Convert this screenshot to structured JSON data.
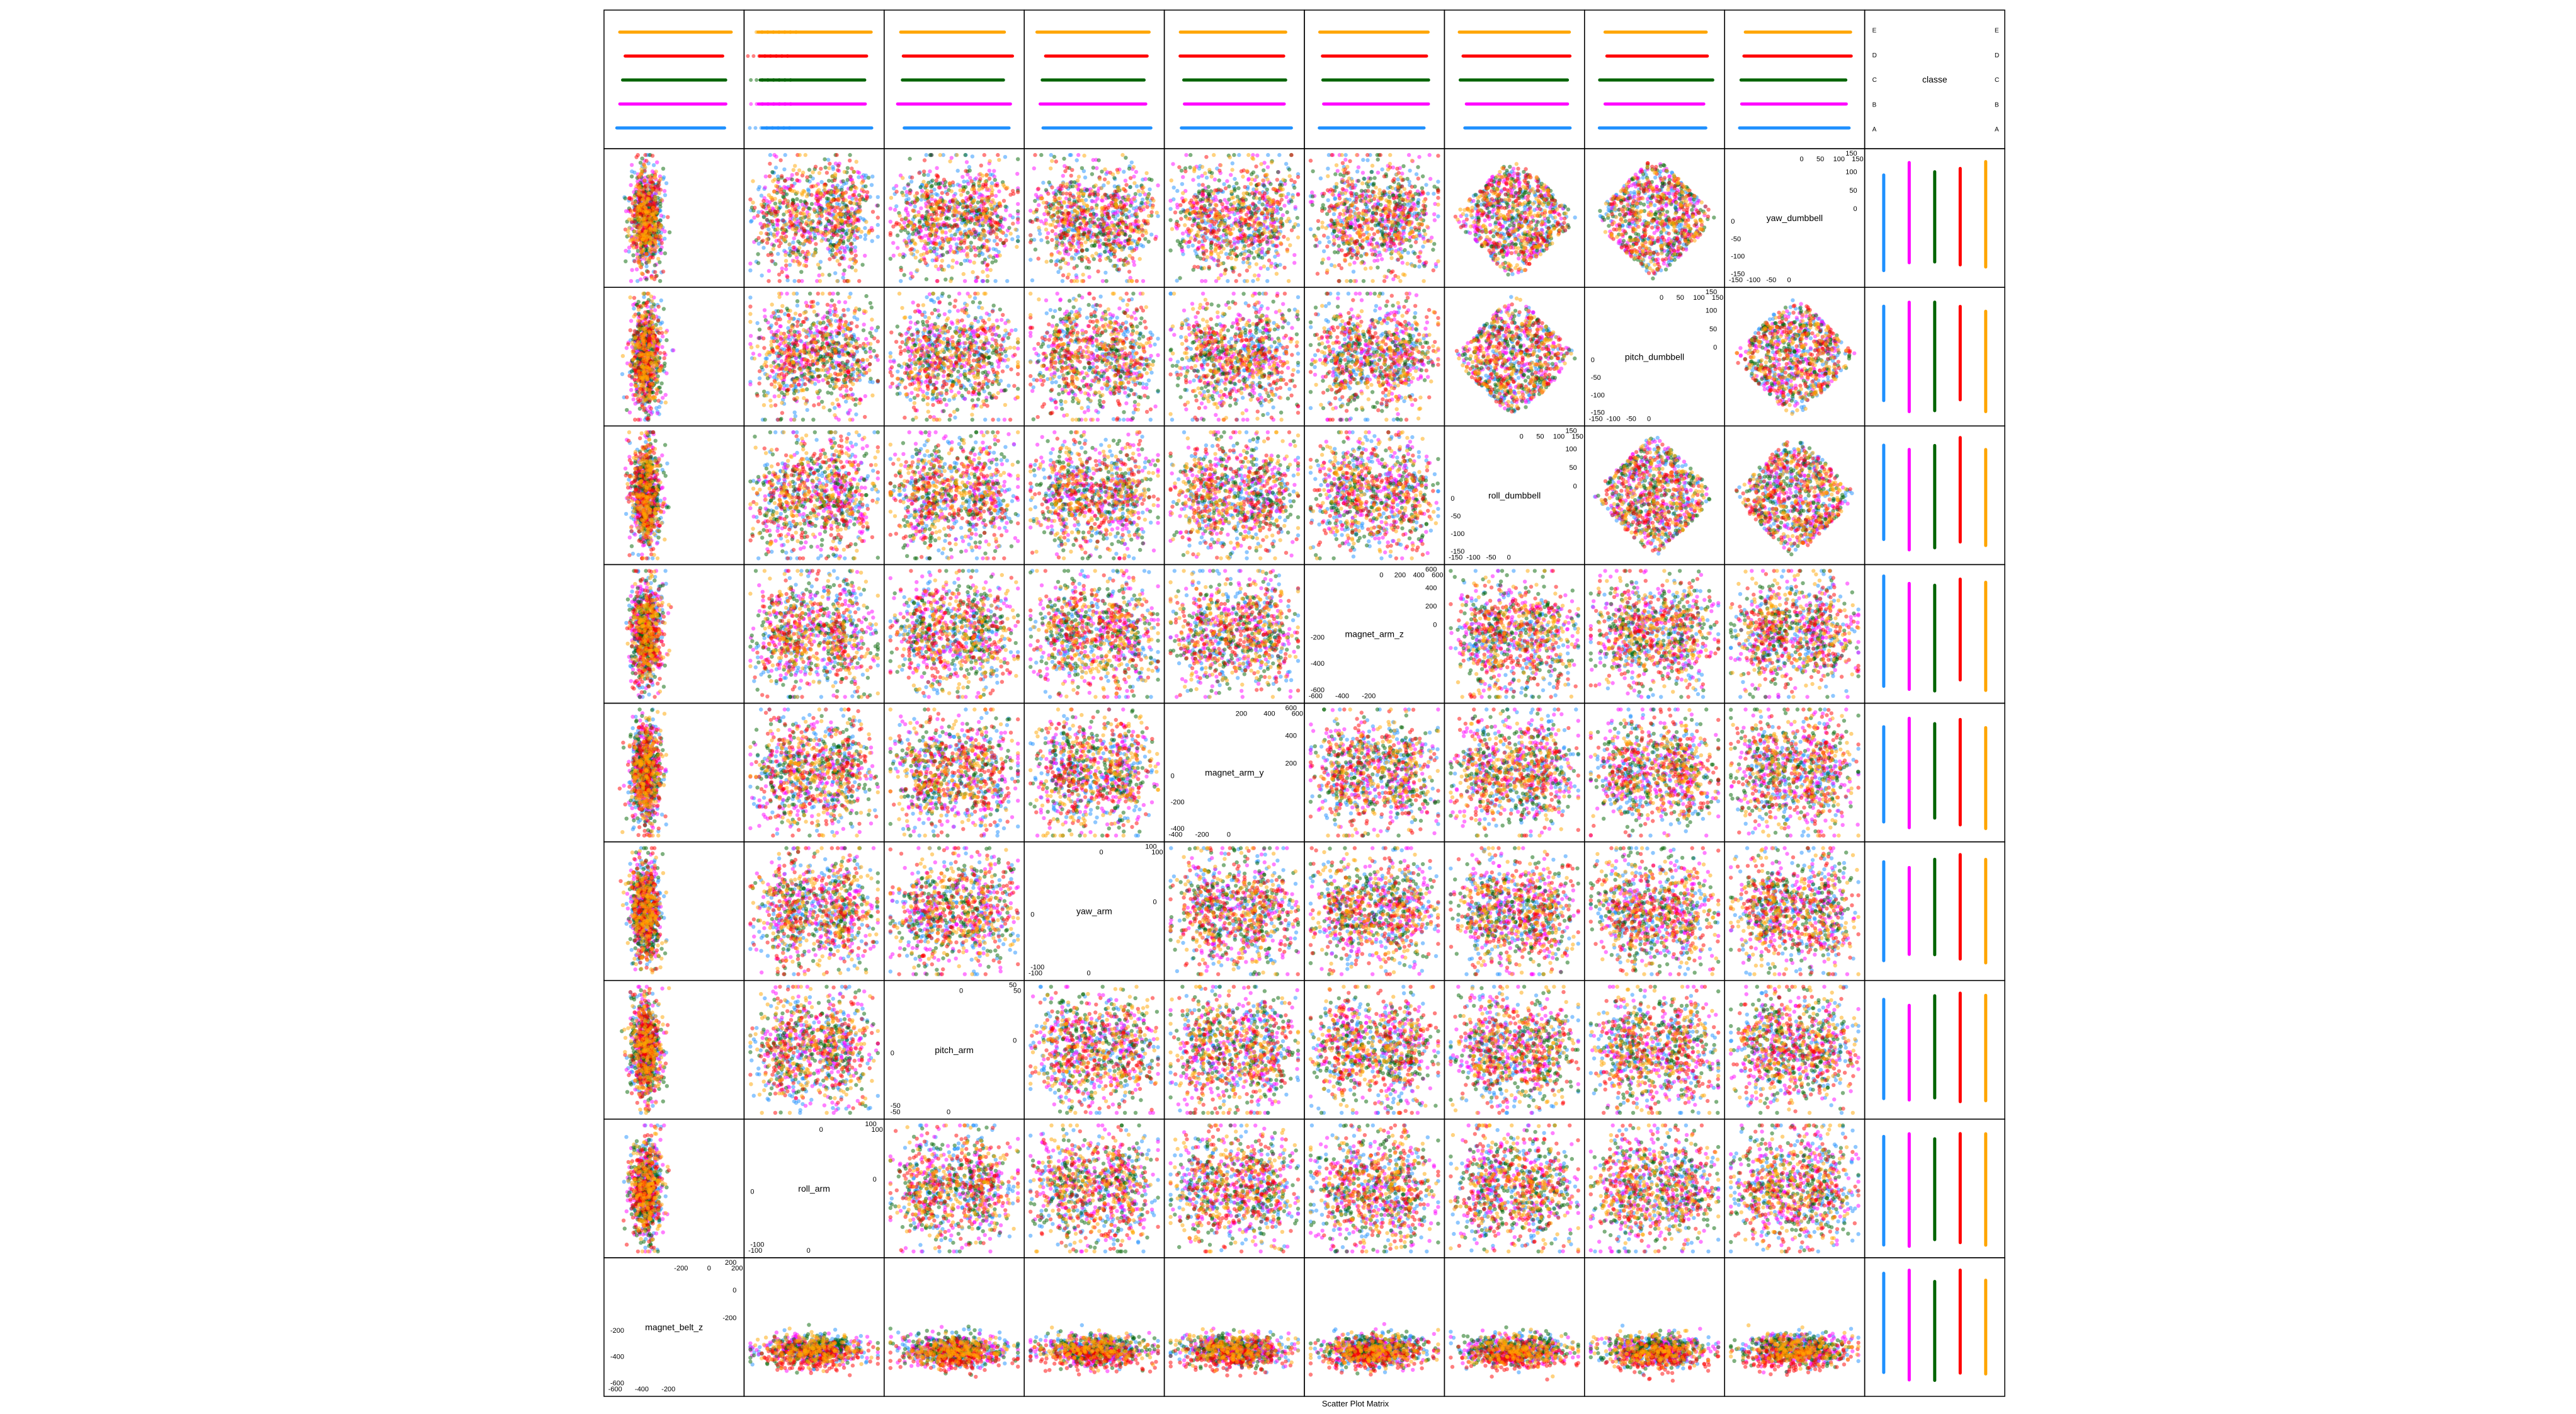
{
  "chart_data": {
    "type": "scatter",
    "matrix_type": "scatter_plot_matrix",
    "xlabel": "Scatter Plot Matrix",
    "variables": [
      {
        "name": "magnet_belt_z",
        "range": [
          -600,
          300
        ],
        "ticks_low": [
          "-600",
          "-400",
          "-200"
        ],
        "ticks_high": [
          "-200",
          "0",
          "200"
        ]
      },
      {
        "name": "roll_arm",
        "range": [
          -180,
          180
        ],
        "ticks_low": [
          "-100",
          "0"
        ],
        "ticks_high": [
          "0",
          "100"
        ]
      },
      {
        "name": "pitch_arm",
        "range": [
          -90,
          90
        ],
        "ticks_low": [
          "-50",
          "0"
        ],
        "ticks_high": [
          "0",
          "50"
        ]
      },
      {
        "name": "yaw_arm",
        "range": [
          -180,
          180
        ],
        "ticks_low": [
          "-100",
          "0"
        ],
        "ticks_high": [
          "0",
          "100"
        ]
      },
      {
        "name": "magnet_arm_y",
        "range": [
          -400,
          600
        ],
        "ticks_low": [
          "-400",
          "-200",
          "0"
        ],
        "ticks_high": [
          "200",
          "400",
          "600"
        ]
      },
      {
        "name": "magnet_arm_z",
        "range": [
          -600,
          700
        ],
        "ticks_low": [
          "-600",
          "-400",
          "-200"
        ],
        "ticks_high": [
          "0",
          "200",
          "400",
          "600"
        ]
      },
      {
        "name": "roll_dumbbell",
        "range": [
          -150,
          150
        ],
        "ticks_low": [
          "-150",
          "-100",
          "-50",
          "0"
        ],
        "ticks_high": [
          "0",
          "50",
          "100",
          "150"
        ]
      },
      {
        "name": "pitch_dumbbell",
        "range": [
          -150,
          150
        ],
        "ticks_low": [
          "-150",
          "-100",
          "-50",
          "0"
        ],
        "ticks_high": [
          "0",
          "50",
          "100",
          "150"
        ]
      },
      {
        "name": "yaw_dumbbell",
        "range": [
          -150,
          150
        ],
        "ticks_low": [
          "-150",
          "-100",
          "-50",
          "0"
        ],
        "ticks_high": [
          "0",
          "50",
          "100",
          "150"
        ]
      },
      {
        "name": "classe",
        "categorical": true,
        "levels": [
          "A",
          "B",
          "C",
          "D",
          "E"
        ]
      }
    ],
    "series": [
      {
        "name": "A",
        "color": "#1E90FF"
      },
      {
        "name": "B",
        "color": "#FF00FF"
      },
      {
        "name": "C",
        "color": "#006400"
      },
      {
        "name": "D",
        "color": "#FF0000"
      },
      {
        "name": "E",
        "color": "#FFA500"
      }
    ],
    "class_axis_labels": [
      "A",
      "B",
      "C",
      "D",
      "E"
    ],
    "grid": false,
    "legend": "none"
  }
}
